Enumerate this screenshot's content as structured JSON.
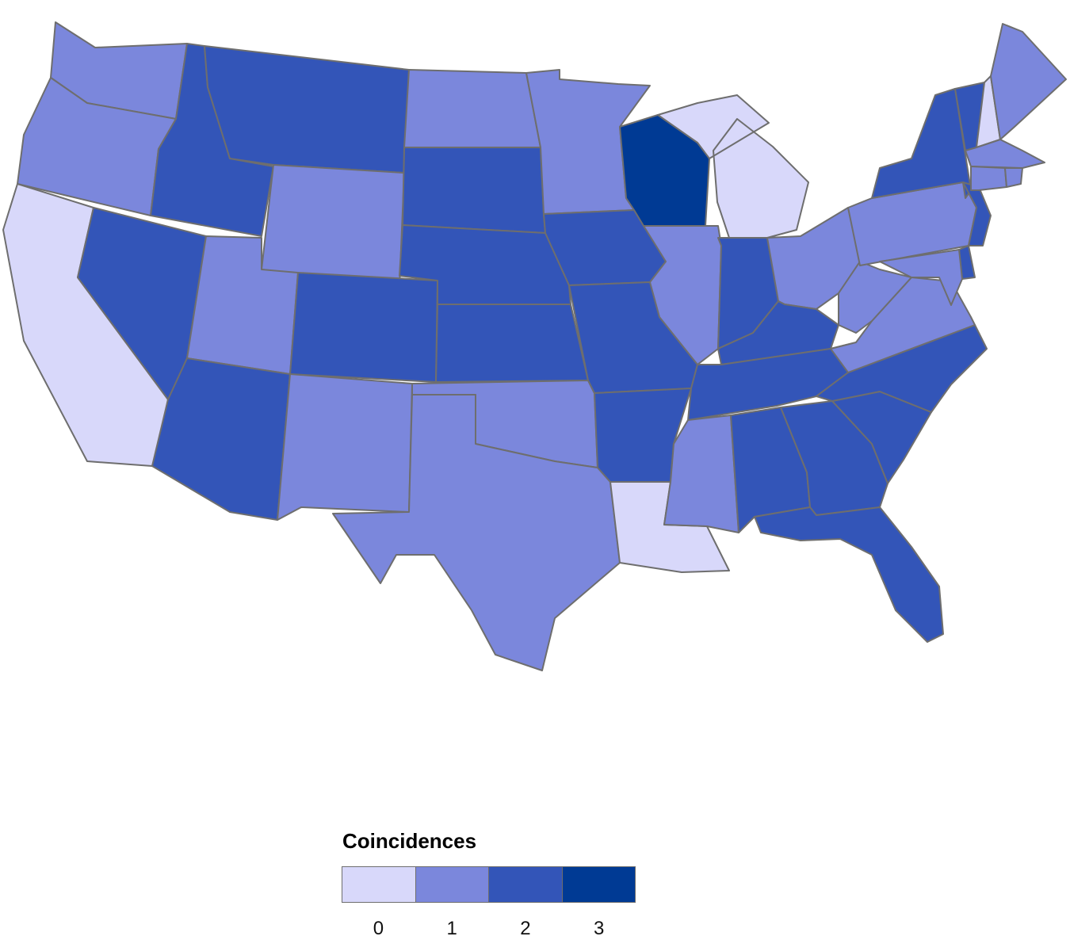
{
  "legend": {
    "title": "Coincidences",
    "categories": [
      "0",
      "1",
      "2",
      "3"
    ],
    "colors": [
      "#d8d8fa",
      "#7b87dc",
      "#3355b8",
      "#003a94"
    ]
  },
  "states": [
    {
      "name": "WA",
      "value": 1
    },
    {
      "name": "OR",
      "value": 1
    },
    {
      "name": "CA",
      "value": 0
    },
    {
      "name": "ID",
      "value": 2
    },
    {
      "name": "MT",
      "value": 2
    },
    {
      "name": "NV",
      "value": 2
    },
    {
      "name": "WY",
      "value": 1
    },
    {
      "name": "UT",
      "value": 1
    },
    {
      "name": "AZ",
      "value": 2
    },
    {
      "name": "CO",
      "value": 2
    },
    {
      "name": "NM",
      "value": 1
    },
    {
      "name": "ND",
      "value": 1
    },
    {
      "name": "SD",
      "value": 2
    },
    {
      "name": "NE",
      "value": 2
    },
    {
      "name": "KS",
      "value": 2
    },
    {
      "name": "OK",
      "value": 1
    },
    {
      "name": "TX",
      "value": 1
    },
    {
      "name": "MN",
      "value": 1
    },
    {
      "name": "IA",
      "value": 2
    },
    {
      "name": "MO",
      "value": 2
    },
    {
      "name": "AR",
      "value": 2
    },
    {
      "name": "LA",
      "value": 0
    },
    {
      "name": "WI",
      "value": 3
    },
    {
      "name": "IL",
      "value": 1
    },
    {
      "name": "MI",
      "value": 0
    },
    {
      "name": "IN",
      "value": 2
    },
    {
      "name": "OH",
      "value": 1
    },
    {
      "name": "KY",
      "value": 2
    },
    {
      "name": "TN",
      "value": 2
    },
    {
      "name": "MS",
      "value": 1
    },
    {
      "name": "AL",
      "value": 2
    },
    {
      "name": "GA",
      "value": 2
    },
    {
      "name": "FL",
      "value": 2
    },
    {
      "name": "SC",
      "value": 2
    },
    {
      "name": "NC",
      "value": 2
    },
    {
      "name": "VA",
      "value": 1
    },
    {
      "name": "WV",
      "value": 1
    },
    {
      "name": "PA",
      "value": 1
    },
    {
      "name": "NY",
      "value": 2
    },
    {
      "name": "NJ",
      "value": 2
    },
    {
      "name": "DE",
      "value": 2
    },
    {
      "name": "MD",
      "value": 1
    },
    {
      "name": "VT",
      "value": 2
    },
    {
      "name": "NH",
      "value": 0
    },
    {
      "name": "ME",
      "value": 1
    },
    {
      "name": "MA",
      "value": 1
    },
    {
      "name": "CT",
      "value": 1
    },
    {
      "name": "RI",
      "value": 1
    }
  ]
}
